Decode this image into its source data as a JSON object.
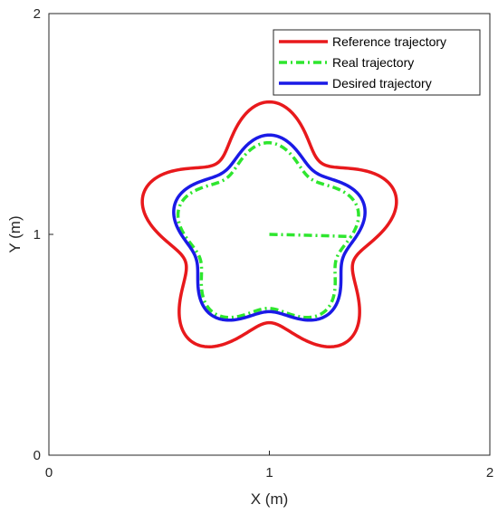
{
  "chart_data": {
    "type": "line",
    "title": "",
    "xlabel": "X (m)",
    "ylabel": "Y (m)",
    "xlim": [
      0,
      2
    ],
    "ylim": [
      0,
      2
    ],
    "xticks": [
      0,
      1,
      2
    ],
    "yticks": [
      0,
      1,
      2
    ],
    "xtick_labels": [
      "0",
      "1",
      "2"
    ],
    "ytick_labels": [
      "0",
      "1",
      "2"
    ],
    "grid": false,
    "legend_position": "top-right",
    "series": [
      {
        "name": "Reference trajectory",
        "color": "#e8191c",
        "style": "solid",
        "shape": "five-lobed closed curve",
        "center": [
          1.0,
          1.0
        ],
        "base_radius": 0.5,
        "lobe_amplitude": 0.1,
        "lobes": 5,
        "phase_deg": 90
      },
      {
        "name": "Real trajectory",
        "color": "#2ee62e",
        "style": "dash-dot",
        "shape": "approach arc from the center then five-lobed closed curve",
        "start_point": [
          1.0,
          1.0
        ],
        "center": [
          0.995,
          0.99
        ],
        "base_radius": 0.375,
        "lobe_amplitude": 0.05,
        "lobes": 5,
        "phase_deg": 90
      },
      {
        "name": "Desired trajectory",
        "color": "#1a1ae6",
        "style": "solid",
        "shape": "five-lobed closed curve",
        "center": [
          1.0,
          1.0
        ],
        "base_radius": 0.4,
        "lobe_amplitude": 0.05,
        "lobes": 5,
        "phase_deg": 90
      }
    ]
  }
}
